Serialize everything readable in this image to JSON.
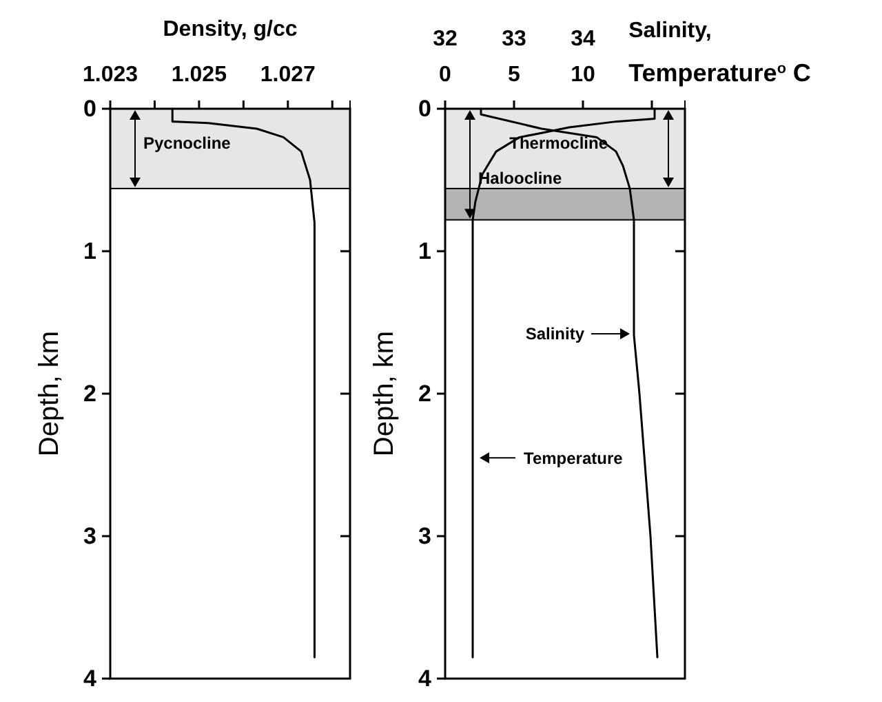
{
  "chart_data": [
    {
      "type": "line",
      "xlabel": "Density, g/cc",
      "ylabel": "Depth, km",
      "xlim": [
        1.023,
        1.0284
      ],
      "xticks": [
        1.023,
        {
          "value": 1.024,
          "label": null
        },
        1.025,
        {
          "value": 1.026,
          "label": null
        },
        1.027,
        {
          "value": 1.028,
          "label": null
        }
      ],
      "ylim": [
        4,
        0
      ],
      "yticks": [
        0,
        1,
        2,
        3,
        4
      ],
      "bands": [
        {
          "axis": "y",
          "from": 0,
          "to": 0.56,
          "label": "Pycnocline",
          "color": "#e6e6e6"
        }
      ],
      "series": [
        {
          "color": "#000000",
          "x": [
            1.0244,
            1.0244,
            1.0252,
            1.0263,
            1.0269,
            1.0273,
            1.0275,
            1.0276,
            1.0276,
            1.0276
          ],
          "values": [
            0,
            0.09,
            0.1,
            0.14,
            0.2,
            0.3,
            0.5,
            0.8,
            1,
            3.85
          ]
        }
      ]
    },
    {
      "type": "line",
      "xlabel": "Temperature$^{o}$ C",
      "x2label": "Salinity,",
      "ylabel": "Depth, km",
      "xlim": [
        0,
        17.4
      ],
      "xticks": [
        0,
        5,
        10,
        {
          "value": 15,
          "label": null
        }
      ],
      "x2lim": [
        32,
        35.48
      ],
      "x2ticks": [
        32,
        33,
        34
      ],
      "ylim": [
        4,
        0
      ],
      "yticks": [
        0,
        1,
        2,
        3,
        4
      ],
      "bands": [
        {
          "axis": "y",
          "from": 0,
          "to": 0.78,
          "label": "Haloocline",
          "color": "#b4b4b4"
        },
        {
          "axis": "y",
          "from": 0,
          "to": 0.56,
          "label": "Thermocline",
          "color": "#e6e6e6"
        }
      ],
      "annotations": [
        {
          "text": "Salinity",
          "x": 13.6,
          "y": 1.58
        },
        {
          "text": "Temperature",
          "x": 2.3,
          "y": 2.45
        }
      ],
      "series": [
        {
          "color": "#000000",
          "x": [
            15.2,
            15.2,
            12.4,
            9.0,
            7.0,
            5.4,
            3.7,
            2.7,
            2.2,
            2.0,
            2.0,
            2.0
          ],
          "values": [
            0,
            0.07,
            0.09,
            0.13,
            0.17,
            0.2,
            0.3,
            0.46,
            0.65,
            0.78,
            1.04,
            3.85
          ]
        },
        {
          "color": "#000000",
          "axis": "x2",
          "x": [
            32.52,
            32.52,
            33.4,
            33.8,
            34.2,
            34.48,
            34.58,
            34.68,
            34.74,
            34.74,
            34.74,
            34.82,
            34.98,
            35.08
          ],
          "values": [
            0,
            0.04,
            0.14,
            0.17,
            0.2,
            0.3,
            0.4,
            0.56,
            0.78,
            1.17,
            1.59,
            2,
            3,
            3.85
          ]
        }
      ]
    }
  ]
}
